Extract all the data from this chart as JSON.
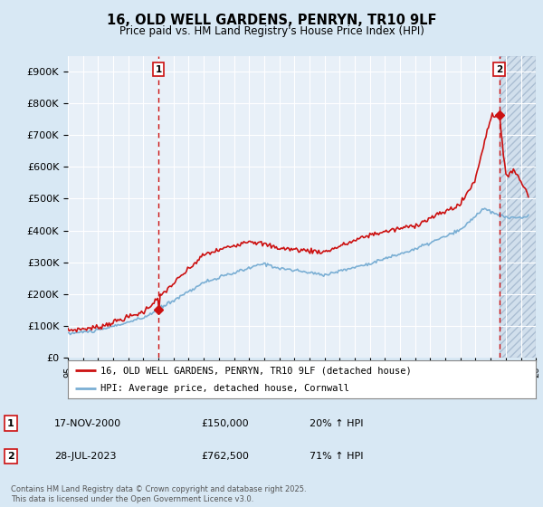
{
  "title": "16, OLD WELL GARDENS, PENRYN, TR10 9LF",
  "subtitle": "Price paid vs. HM Land Registry's House Price Index (HPI)",
  "footer": "Contains HM Land Registry data © Crown copyright and database right 2025.\nThis data is licensed under the Open Government Licence v3.0.",
  "legend_line1": "16, OLD WELL GARDENS, PENRYN, TR10 9LF (detached house)",
  "legend_line2": "HPI: Average price, detached house, Cornwall",
  "sale1_date": "17-NOV-2000",
  "sale1_price": "£150,000",
  "sale1_hpi": "20% ↑ HPI",
  "sale2_date": "28-JUL-2023",
  "sale2_price": "£762,500",
  "sale2_hpi": "71% ↑ HPI",
  "xlim": [
    1995,
    2026
  ],
  "ylim": [
    0,
    950000
  ],
  "yticks": [
    0,
    100000,
    200000,
    300000,
    400000,
    500000,
    600000,
    700000,
    800000,
    900000
  ],
  "ytick_labels": [
    "£0",
    "£100K",
    "£200K",
    "£300K",
    "£400K",
    "£500K",
    "£600K",
    "£700K",
    "£800K",
    "£900K"
  ],
  "hpi_color": "#7bafd4",
  "price_color": "#cc1111",
  "vline_color": "#cc1111",
  "background_color": "#d8e8f4",
  "plot_bg_color": "#e8f0f8",
  "grid_color": "#ffffff",
  "marker_color": "#cc1111",
  "sale1_x": 2001.0,
  "sale2_x": 2023.57,
  "sale1_y": 150000,
  "sale2_y": 762500
}
